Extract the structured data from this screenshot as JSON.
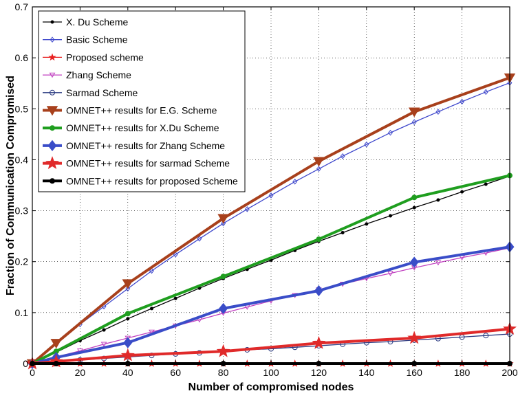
{
  "chart_data": {
    "type": "line",
    "xlabel": "Number of compromised nodes",
    "ylabel": "Fraction of Communication Compromised",
    "xlim": [
      0,
      200
    ],
    "ylim": [
      0,
      0.7
    ],
    "xticks": [
      0,
      20,
      40,
      60,
      80,
      100,
      120,
      140,
      160,
      180,
      200
    ],
    "yticks": [
      0,
      0.1,
      0.2,
      0.3,
      0.4,
      0.5,
      0.6,
      0.7
    ],
    "xtick_labels": [
      "0",
      "20",
      "40",
      "60",
      "80",
      "100",
      "120",
      "140",
      "160",
      "180",
      "200"
    ],
    "ytick_labels": [
      "0",
      "0.1",
      "0.2",
      "0.3",
      "0.4",
      "0.5",
      "0.6",
      "0.7"
    ],
    "grid": true,
    "legend_position": "top-left",
    "series": [
      {
        "name": "X. Du Scheme",
        "color": "#000000",
        "marker": "dot",
        "thick": false,
        "x": [
          0,
          10,
          20,
          30,
          40,
          50,
          60,
          70,
          80,
          90,
          100,
          110,
          120,
          130,
          140,
          150,
          160,
          170,
          180,
          190,
          200
        ],
        "y": [
          0,
          0.022,
          0.045,
          0.066,
          0.088,
          0.108,
          0.128,
          0.148,
          0.167,
          0.185,
          0.203,
          0.222,
          0.24,
          0.257,
          0.274,
          0.29,
          0.306,
          0.321,
          0.337,
          0.352,
          0.368
        ]
      },
      {
        "name": "Basic Scheme",
        "color": "#3f48cc",
        "marker": "diamond",
        "thick": false,
        "x": [
          0,
          10,
          20,
          30,
          40,
          50,
          60,
          70,
          80,
          90,
          100,
          110,
          120,
          130,
          140,
          150,
          160,
          170,
          180,
          190,
          200
        ],
        "y": [
          0,
          0.038,
          0.077,
          0.112,
          0.147,
          0.182,
          0.214,
          0.245,
          0.275,
          0.303,
          0.33,
          0.357,
          0.382,
          0.407,
          0.43,
          0.453,
          0.474,
          0.494,
          0.514,
          0.533,
          0.551
        ]
      },
      {
        "name": "Proposed scheme",
        "color": "#e82020",
        "marker": "star",
        "thick": false,
        "x": [
          0,
          10,
          20,
          30,
          40,
          50,
          60,
          70,
          80,
          90,
          100,
          110,
          120,
          130,
          140,
          150,
          160,
          170,
          180,
          190,
          200
        ],
        "y": [
          0,
          0,
          0,
          0,
          0,
          0,
          0,
          0,
          0,
          0,
          0,
          0,
          0,
          0,
          0,
          0,
          0,
          0,
          0,
          0,
          0
        ]
      },
      {
        "name": "Zhang Scheme",
        "color": "#c040c0",
        "marker": "triangle-down",
        "thick": false,
        "x": [
          0,
          10,
          20,
          30,
          40,
          50,
          60,
          70,
          80,
          90,
          100,
          110,
          120,
          130,
          140,
          150,
          160,
          170,
          180,
          190,
          200
        ],
        "y": [
          0,
          0.013,
          0.025,
          0.038,
          0.05,
          0.062,
          0.074,
          0.086,
          0.099,
          0.111,
          0.123,
          0.134,
          0.145,
          0.156,
          0.167,
          0.177,
          0.188,
          0.198,
          0.208,
          0.217,
          0.227
        ]
      },
      {
        "name": "Sarmad Scheme",
        "color": "#283880",
        "marker": "circle",
        "thick": false,
        "x": [
          0,
          10,
          20,
          30,
          40,
          50,
          60,
          70,
          80,
          90,
          100,
          110,
          120,
          130,
          140,
          150,
          160,
          170,
          180,
          190,
          200
        ],
        "y": [
          0,
          0.004,
          0.007,
          0.01,
          0.013,
          0.016,
          0.019,
          0.021,
          0.024,
          0.027,
          0.029,
          0.032,
          0.035,
          0.038,
          0.041,
          0.043,
          0.046,
          0.049,
          0.052,
          0.055,
          0.058
        ]
      },
      {
        "name": "OMNET++ results for E.G. Scheme",
        "color": "#a8401c",
        "marker": "triangle-down",
        "thick": true,
        "x": [
          0,
          10,
          40,
          80,
          120,
          160,
          200
        ],
        "y": [
          0,
          0.04,
          0.157,
          0.285,
          0.397,
          0.494,
          0.561
        ]
      },
      {
        "name": "OMNET++ results for X.Du Scheme",
        "color": "#1f9e1f",
        "marker": "dot",
        "thick": true,
        "x": [
          0,
          10,
          40,
          80,
          120,
          160,
          200
        ],
        "y": [
          0,
          0.024,
          0.098,
          0.171,
          0.244,
          0.326,
          0.369
        ]
      },
      {
        "name": "OMNET++ results for Zhang Scheme",
        "color": "#3a4dc8",
        "marker": "diamond",
        "thick": true,
        "x": [
          0,
          10,
          40,
          80,
          120,
          160,
          200
        ],
        "y": [
          0,
          0.012,
          0.041,
          0.108,
          0.143,
          0.199,
          0.229
        ]
      },
      {
        "name": "OMNET++ results for sarmad Scheme",
        "color": "#e02a2a",
        "marker": "star",
        "thick": true,
        "x": [
          0,
          10,
          40,
          80,
          120,
          160,
          200
        ],
        "y": [
          0,
          0.004,
          0.016,
          0.024,
          0.04,
          0.05,
          0.068
        ]
      },
      {
        "name": "OMNET++ results for proposed Scheme",
        "color": "#000000",
        "marker": "dot",
        "thick": true,
        "x": [
          0,
          10,
          40,
          80,
          120,
          160,
          200
        ],
        "y": [
          0,
          0,
          0,
          0,
          0,
          0,
          0
        ]
      }
    ]
  }
}
